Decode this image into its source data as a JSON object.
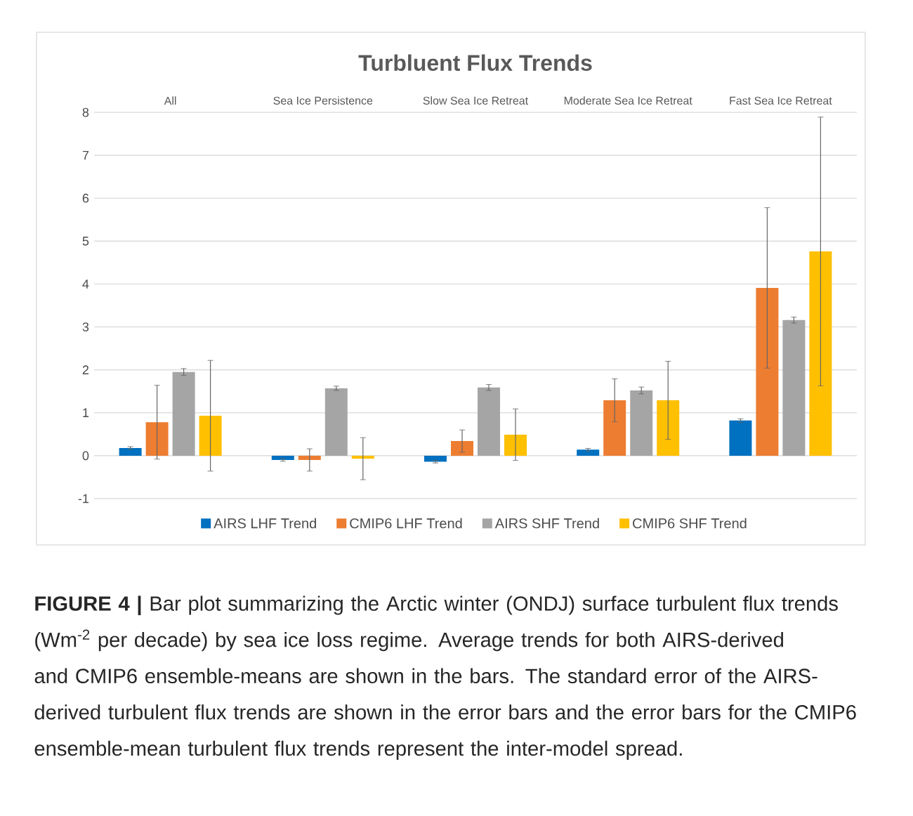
{
  "chart_data": {
    "type": "bar",
    "title": "Turbluent Flux Trends",
    "categories": [
      "All",
      "Sea Ice Persistence",
      "Slow Sea Ice Retreat",
      "Moderate Sea Ice Retreat",
      "Fast Sea Ice Retreat"
    ],
    "series": [
      {
        "name": "AIRS LHF Trend",
        "color": "#0070c0",
        "values": [
          0.18,
          -0.1,
          -0.14,
          0.14,
          0.82
        ],
        "errors": [
          0.03,
          0.03,
          0.03,
          0.03,
          0.04
        ]
      },
      {
        "name": "CMIP6 LHF Trend",
        "color": "#ed7d31",
        "values": [
          0.78,
          -0.1,
          0.34,
          1.29,
          3.91
        ],
        "errors": [
          0.86,
          0.26,
          0.26,
          0.5,
          1.87
        ]
      },
      {
        "name": "AIRS SHF Trend",
        "color": "#a5a5a5",
        "values": [
          1.95,
          1.57,
          1.59,
          1.52,
          3.16
        ],
        "errors": [
          0.08,
          0.05,
          0.07,
          0.08,
          0.07
        ]
      },
      {
        "name": "CMIP6 SHF Trend",
        "color": "#ffc000",
        "values": [
          0.93,
          -0.07,
          0.49,
          1.29,
          4.76
        ],
        "errors": [
          1.29,
          0.49,
          0.6,
          0.91,
          3.13
        ]
      }
    ],
    "ylim": [
      -1,
      8
    ],
    "yticks": [
      -1,
      0,
      1,
      2,
      3,
      4,
      5,
      6,
      7,
      8
    ],
    "grid": "y",
    "legend": "bottom",
    "annotations": [
      "**FIGURE 4 |** Bar plot summarizing the Arctic winter (ONDJ) surface turbulent flux trends (Wm$^{-2}$ per decade) by sea ice loss regime. Average trends for both AIRS-derived and CMIP6 ensemble-means are shown in the bars. The standard error of the AIRS-derived turbulent flux trends are shown in the error bars and the error bars for the CMIP6 ensemble-mean turbulent flux trends represent the inter-model spread."
    ]
  }
}
